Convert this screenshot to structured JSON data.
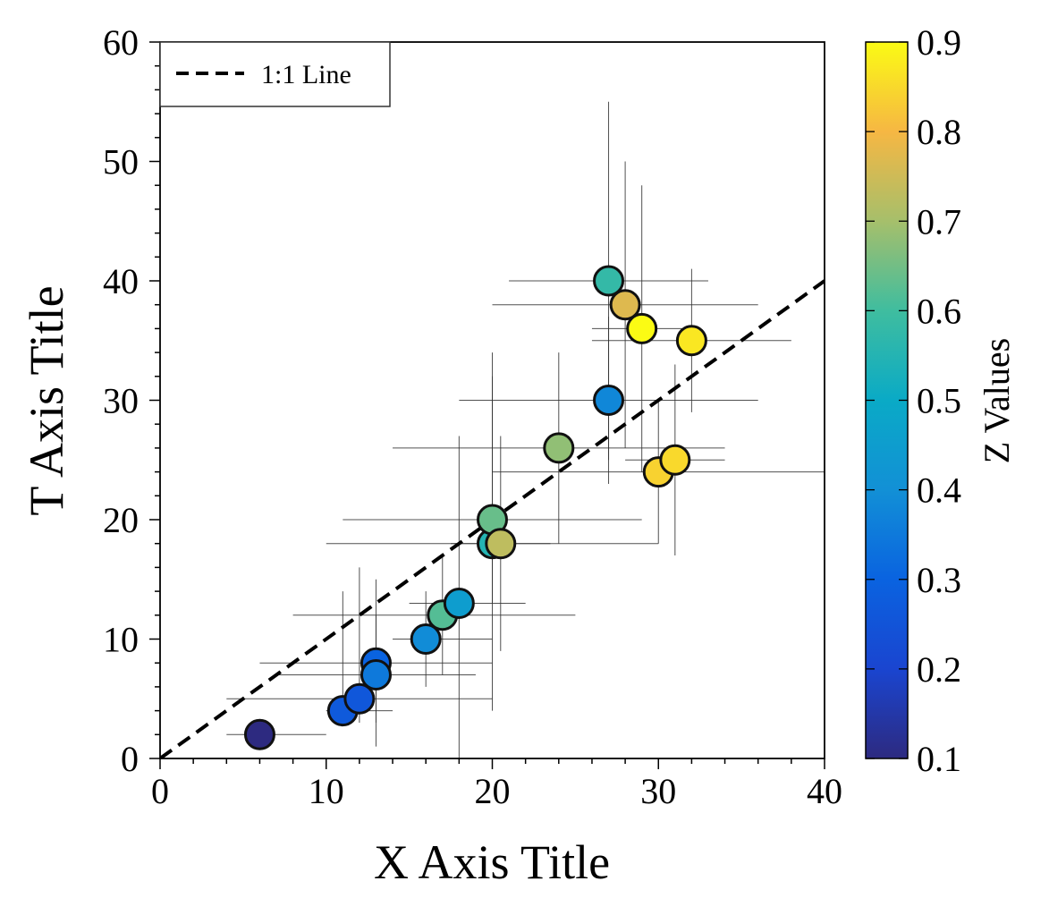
{
  "chart_data": {
    "type": "scatter",
    "xlabel": "X Axis Title",
    "ylabel": "T Axis Title",
    "xlim": [
      0,
      40
    ],
    "ylim": [
      0,
      60
    ],
    "xticks": [
      "0",
      "10",
      "20",
      "30",
      "40"
    ],
    "yticks": [
      "0",
      "10",
      "20",
      "30",
      "40",
      "50",
      "60"
    ],
    "grid": false,
    "legend": {
      "placement": "top-left",
      "entries": [
        {
          "label": "1:1 Line",
          "style": "dashed",
          "color": "#000000"
        }
      ]
    },
    "reference_line": {
      "label": "1:1 Line",
      "x": [
        0,
        40
      ],
      "y": [
        0,
        40
      ]
    },
    "colorbar": {
      "label": "Z Values",
      "range": [
        0.1,
        0.9
      ],
      "ticks": [
        "0.1",
        "0.2",
        "0.3",
        "0.4",
        "0.5",
        "0.6",
        "0.7",
        "0.8",
        "0.9"
      ],
      "colormap": [
        "#2d2a80",
        "#1a45d0",
        "#0a63e0",
        "#1290d6",
        "#0aaac6",
        "#3fbd9f",
        "#a6bf6b",
        "#f6b743",
        "#fbfb14"
      ]
    },
    "points": [
      {
        "x": 6,
        "y": 2,
        "z": 0.1,
        "xerr": [
          2,
          4
        ],
        "yerr": [
          0,
          0
        ]
      },
      {
        "x": 11,
        "y": 4,
        "z": 0.27,
        "xerr": [
          1,
          3
        ],
        "yerr": [
          1,
          10
        ]
      },
      {
        "x": 12,
        "y": 5,
        "z": 0.26,
        "xerr": [
          8,
          8
        ],
        "yerr": [
          2,
          11
        ]
      },
      {
        "x": 13,
        "y": 8,
        "z": 0.3,
        "xerr": [
          7,
          7
        ],
        "yerr": [
          5,
          4
        ]
      },
      {
        "x": 13,
        "y": 7,
        "z": 0.35,
        "xerr": [
          6,
          6
        ],
        "yerr": [
          6,
          8
        ]
      },
      {
        "x": 16,
        "y": 10,
        "z": 0.39,
        "xerr": [
          2,
          4
        ],
        "yerr": [
          4,
          4
        ]
      },
      {
        "x": 17,
        "y": 12,
        "z": 0.62,
        "xerr": [
          9,
          8
        ],
        "yerr": [
          5,
          5
        ]
      },
      {
        "x": 18,
        "y": 13,
        "z": 0.45,
        "xerr": [
          3,
          4
        ],
        "yerr": [
          13,
          14
        ]
      },
      {
        "x": 20,
        "y": 18,
        "z": 0.55,
        "xerr": [
          10,
          10
        ],
        "yerr": [
          14,
          16
        ]
      },
      {
        "x": 20,
        "y": 20,
        "z": 0.64,
        "xerr": [
          9,
          9
        ],
        "yerr": [
          7,
          12
        ]
      },
      {
        "x": 20.5,
        "y": 18,
        "z": 0.73,
        "xerr": [
          3,
          3
        ],
        "yerr": [
          9,
          9
        ]
      },
      {
        "x": 24,
        "y": 26,
        "z": 0.68,
        "xerr": [
          10,
          10
        ],
        "yerr": [
          8,
          8
        ]
      },
      {
        "x": 27,
        "y": 30,
        "z": 0.38,
        "xerr": [
          9,
          9
        ],
        "yerr": [
          7,
          7
        ]
      },
      {
        "x": 27,
        "y": 40,
        "z": 0.58,
        "xerr": [
          6,
          6
        ],
        "yerr": [
          15,
          15
        ]
      },
      {
        "x": 28,
        "y": 38,
        "z": 0.77,
        "xerr": [
          8,
          8
        ],
        "yerr": [
          12,
          12
        ]
      },
      {
        "x": 29,
        "y": 36,
        "z": 0.9,
        "xerr": [
          3,
          3
        ],
        "yerr": [
          12,
          12
        ]
      },
      {
        "x": 30,
        "y": 24,
        "z": 0.84,
        "xerr": [
          10,
          10
        ],
        "yerr": [
          6,
          6
        ]
      },
      {
        "x": 31,
        "y": 25,
        "z": 0.85,
        "xerr": [
          3,
          3
        ],
        "yerr": [
          8,
          8
        ]
      },
      {
        "x": 32,
        "y": 35,
        "z": 0.87,
        "xerr": [
          6,
          6
        ],
        "yerr": [
          6,
          6
        ]
      }
    ]
  }
}
